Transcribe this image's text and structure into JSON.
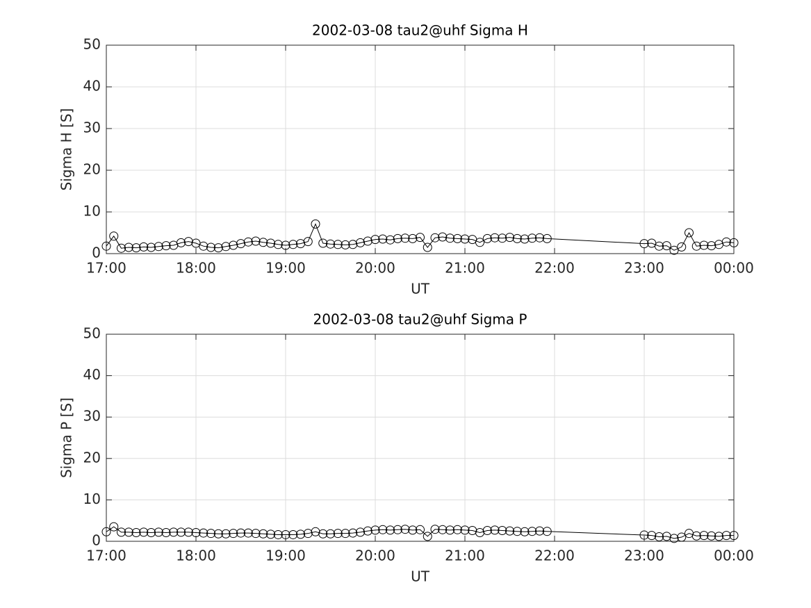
{
  "chart_data": [
    {
      "type": "line",
      "title": "2002-03-08  tau2@uhf Sigma H",
      "xlabel": "UT",
      "ylabel": "Sigma H [S]",
      "x": [
        "17:00",
        "17:05",
        "17:10",
        "17:15",
        "17:20",
        "17:25",
        "17:30",
        "17:35",
        "17:40",
        "17:45",
        "17:50",
        "17:55",
        "18:00",
        "18:05",
        "18:10",
        "18:15",
        "18:20",
        "18:25",
        "18:30",
        "18:35",
        "18:40",
        "18:45",
        "18:50",
        "18:55",
        "19:00",
        "19:05",
        "19:10",
        "19:15",
        "19:20",
        "19:25",
        "19:30",
        "19:35",
        "19:40",
        "19:45",
        "19:50",
        "19:55",
        "20:00",
        "20:05",
        "20:10",
        "20:15",
        "20:20",
        "20:25",
        "20:30",
        "20:35",
        "20:40",
        "20:45",
        "20:50",
        "20:55",
        "21:00",
        "21:05",
        "21:10",
        "21:15",
        "21:20",
        "21:25",
        "21:30",
        "21:35",
        "21:40",
        "21:45",
        "21:50",
        "21:55",
        "23:00",
        "23:05",
        "23:10",
        "23:15",
        "23:20",
        "23:25",
        "23:30",
        "23:35",
        "23:40",
        "23:45",
        "23:50",
        "23:55",
        "00:00"
      ],
      "values": [
        1.8,
        4.2,
        1.3,
        1.5,
        1.4,
        1.6,
        1.5,
        1.7,
        1.9,
        2.0,
        2.6,
        2.9,
        2.5,
        1.8,
        1.5,
        1.4,
        1.7,
        2.0,
        2.4,
        2.8,
        3.0,
        2.7,
        2.5,
        2.2,
        2.0,
        2.2,
        2.4,
        2.9,
        7.1,
        2.5,
        2.3,
        2.2,
        2.1,
        2.2,
        2.6,
        3.0,
        3.4,
        3.5,
        3.3,
        3.6,
        3.7,
        3.6,
        3.9,
        1.5,
        3.8,
        4.0,
        3.7,
        3.6,
        3.5,
        3.4,
        2.7,
        3.6,
        3.8,
        3.7,
        3.9,
        3.6,
        3.5,
        3.7,
        3.8,
        3.6,
        2.4,
        2.5,
        1.8,
        1.9,
        0.8,
        1.6,
        5.0,
        1.8,
        2.0,
        1.9,
        2.2,
        2.8,
        2.6
      ],
      "color": "#000000",
      "marker": "circle",
      "grid": true,
      "xlim": [
        "17:00",
        "00:00"
      ],
      "xticks": [
        "17:00",
        "18:00",
        "19:00",
        "20:00",
        "21:00",
        "22:00",
        "23:00",
        "00:00"
      ],
      "ylim": [
        0,
        50
      ],
      "yticks": [
        0,
        10,
        20,
        30,
        40,
        50
      ]
    },
    {
      "type": "line",
      "title": "2002-03-08  tau2@uhf Sigma P",
      "xlabel": "UT",
      "ylabel": "Sigma P [S]",
      "x": [
        "17:00",
        "17:05",
        "17:10",
        "17:15",
        "17:20",
        "17:25",
        "17:30",
        "17:35",
        "17:40",
        "17:45",
        "17:50",
        "17:55",
        "18:00",
        "18:05",
        "18:10",
        "18:15",
        "18:20",
        "18:25",
        "18:30",
        "18:35",
        "18:40",
        "18:45",
        "18:50",
        "18:55",
        "19:00",
        "19:05",
        "19:10",
        "19:15",
        "19:20",
        "19:25",
        "19:30",
        "19:35",
        "19:40",
        "19:45",
        "19:50",
        "19:55",
        "20:00",
        "20:05",
        "20:10",
        "20:15",
        "20:20",
        "20:25",
        "20:30",
        "20:35",
        "20:40",
        "20:45",
        "20:50",
        "20:55",
        "21:00",
        "21:05",
        "21:10",
        "21:15",
        "21:20",
        "21:25",
        "21:30",
        "21:35",
        "21:40",
        "21:45",
        "21:50",
        "21:55",
        "23:00",
        "23:05",
        "23:10",
        "23:15",
        "23:20",
        "23:25",
        "23:30",
        "23:35",
        "23:40",
        "23:45",
        "23:50",
        "23:55",
        "00:00"
      ],
      "values": [
        2.3,
        3.5,
        2.2,
        2.2,
        2.1,
        2.2,
        2.1,
        2.2,
        2.1,
        2.2,
        2.2,
        2.2,
        2.1,
        2.0,
        1.9,
        1.8,
        1.8,
        1.9,
        2.0,
        2.0,
        1.9,
        1.8,
        1.7,
        1.6,
        1.6,
        1.6,
        1.7,
        1.9,
        2.3,
        1.8,
        1.8,
        1.9,
        1.9,
        2.0,
        2.2,
        2.5,
        2.7,
        2.8,
        2.7,
        2.8,
        2.9,
        2.7,
        2.8,
        1.2,
        2.9,
        2.8,
        2.7,
        2.8,
        2.7,
        2.6,
        2.1,
        2.6,
        2.7,
        2.6,
        2.5,
        2.4,
        2.3,
        2.4,
        2.5,
        2.4,
        1.5,
        1.4,
        1.1,
        1.2,
        0.7,
        1.0,
        1.9,
        1.3,
        1.4,
        1.3,
        1.2,
        1.4,
        1.4
      ],
      "color": "#000000",
      "marker": "circle",
      "grid": true,
      "xlim": [
        "17:00",
        "00:00"
      ],
      "xticks": [
        "17:00",
        "18:00",
        "19:00",
        "20:00",
        "21:00",
        "22:00",
        "23:00",
        "00:00"
      ],
      "ylim": [
        0,
        50
      ],
      "yticks": [
        0,
        10,
        20,
        30,
        40,
        50
      ]
    }
  ]
}
